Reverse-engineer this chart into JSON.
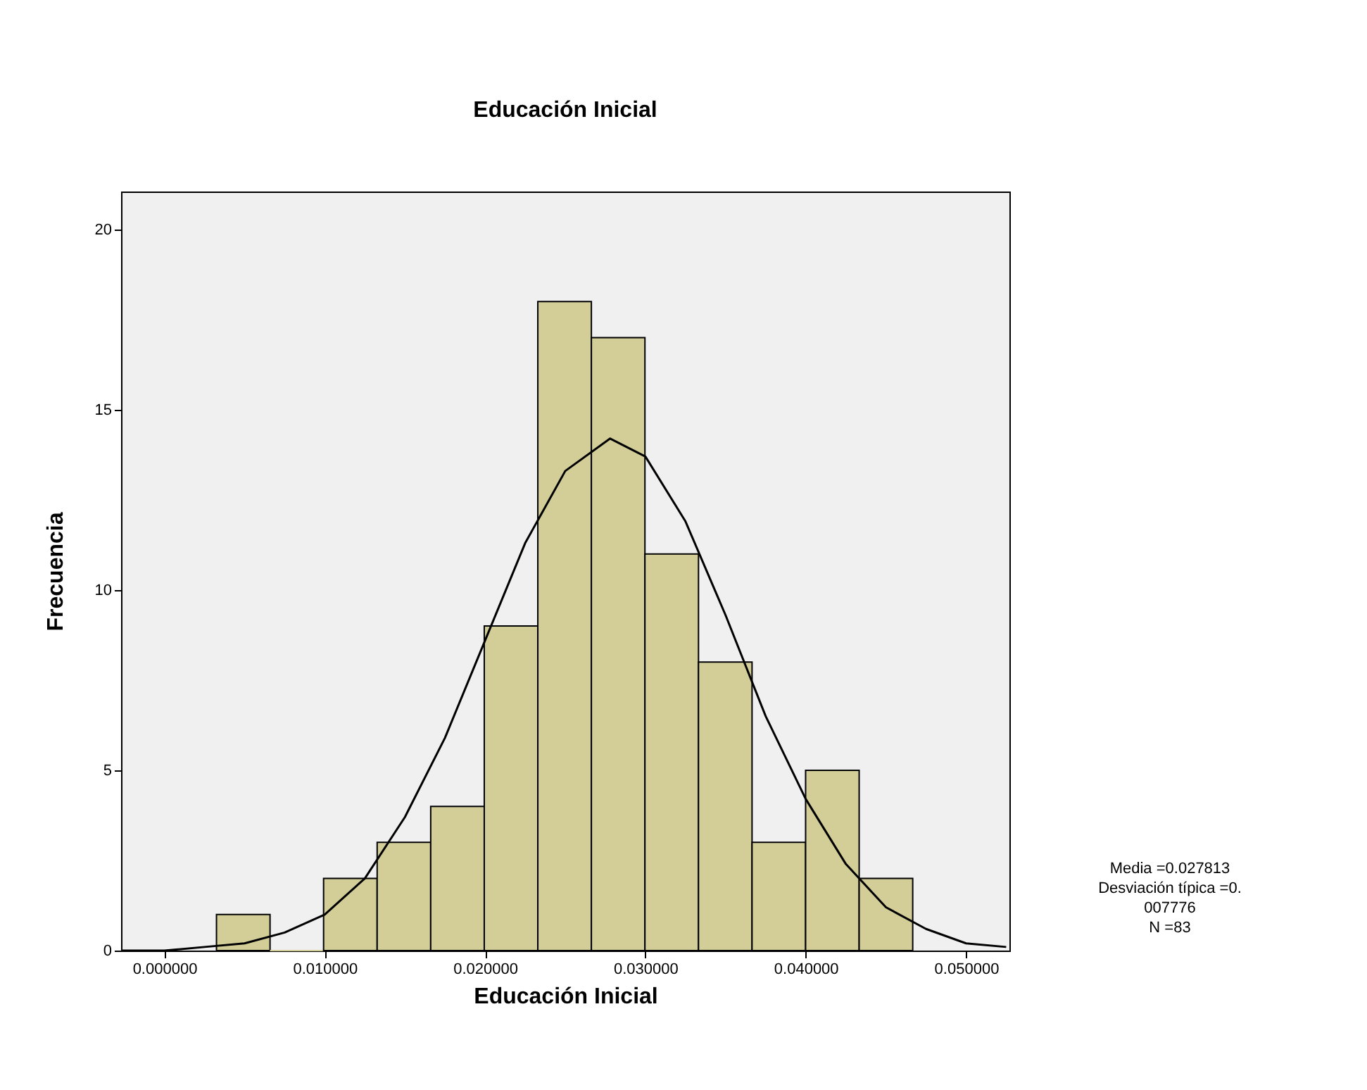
{
  "chart_data": {
    "type": "histogram",
    "title": "Educación Inicial",
    "xlabel": "Educación Inicial",
    "ylabel": "Frecuencia",
    "bins": [
      0.00325,
      0.00659,
      0.00993,
      0.01327,
      0.01661,
      0.01995,
      0.02329,
      0.02663,
      0.02997,
      0.03331,
      0.03665,
      0.03999,
      0.04333,
      0.04667
    ],
    "values": [
      1,
      0,
      2,
      3,
      4,
      9,
      18,
      17,
      11,
      8,
      3,
      5,
      2
    ],
    "color": "#d3ce97",
    "series": [
      {
        "type": "line",
        "color": "#000000",
        "x": [
          -0.0027,
          0.0,
          0.0025,
          0.005,
          0.0075,
          0.01,
          0.0125,
          0.015,
          0.0175,
          0.02,
          0.0225,
          0.025,
          0.0278,
          0.03,
          0.0325,
          0.035,
          0.0375,
          0.04,
          0.0425,
          0.045,
          0.0475,
          0.05,
          0.0525
        ],
        "values": [
          0.0,
          0.0,
          0.1,
          0.2,
          0.5,
          1.0,
          2.0,
          3.7,
          5.9,
          8.6,
          11.3,
          13.3,
          14.2,
          13.7,
          11.9,
          9.3,
          6.5,
          4.2,
          2.4,
          1.2,
          0.6,
          0.2,
          0.1
        ]
      }
    ],
    "xlim": [
      -0.0027,
      0.0527
    ],
    "xticks": [
      {
        "value": 0.0,
        "label": "0.000000"
      },
      {
        "value": 0.01,
        "label": "0.010000"
      },
      {
        "value": 0.02,
        "label": "0.020000"
      },
      {
        "value": 0.03,
        "label": "0.030000"
      },
      {
        "value": 0.04,
        "label": "0.040000"
      },
      {
        "value": 0.05,
        "label": "0.050000"
      }
    ],
    "ylim": [
      0,
      21.05
    ],
    "yticks": [
      0,
      5,
      10,
      15,
      20
    ],
    "grid": false,
    "annotations": [
      "Media =0.027813",
      "Desviación típica =0.",
      "007776",
      "N =83"
    ]
  }
}
